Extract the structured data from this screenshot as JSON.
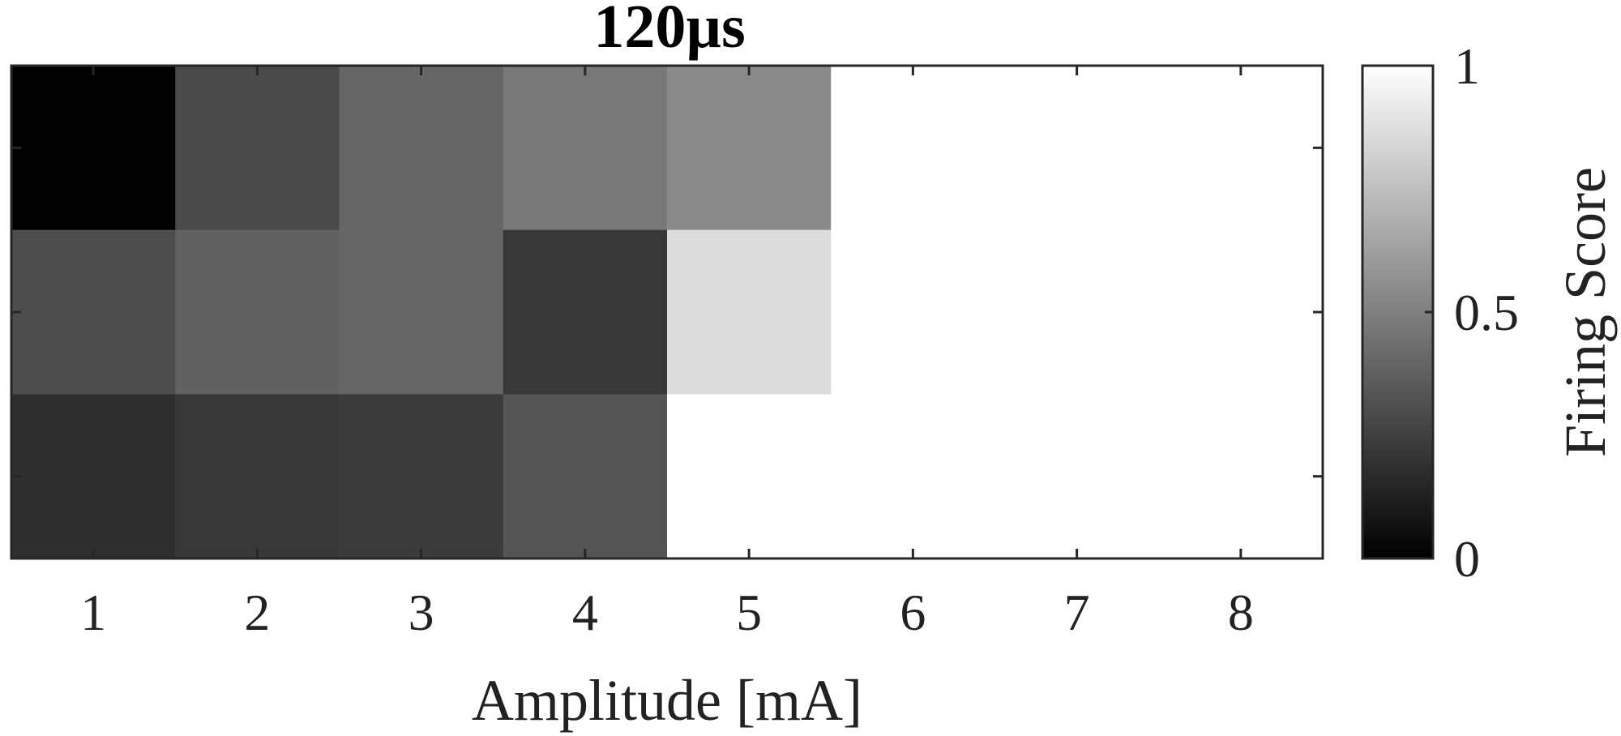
{
  "chart_data": {
    "type": "heatmap",
    "title": "120µs",
    "xlabel": "Amplitude [mA]",
    "ylabel": "",
    "x_categories": [
      "1",
      "2",
      "3",
      "4",
      "5",
      "6",
      "7",
      "8"
    ],
    "rows": 3,
    "values": [
      [
        0.0,
        0.29,
        0.4,
        0.47,
        0.54,
        1.0,
        1.0,
        1.0
      ],
      [
        0.3,
        0.38,
        0.4,
        0.22,
        0.86,
        1.0,
        1.0,
        1.0
      ],
      [
        0.18,
        0.22,
        0.23,
        0.33,
        1.0,
        1.0,
        1.0,
        1.0
      ]
    ],
    "colormap": "gray",
    "colorbar": {
      "label": "Firing Score",
      "ticks": [
        "0",
        "0.5",
        "1"
      ],
      "range": [
        0,
        1
      ]
    },
    "grid": false
  }
}
